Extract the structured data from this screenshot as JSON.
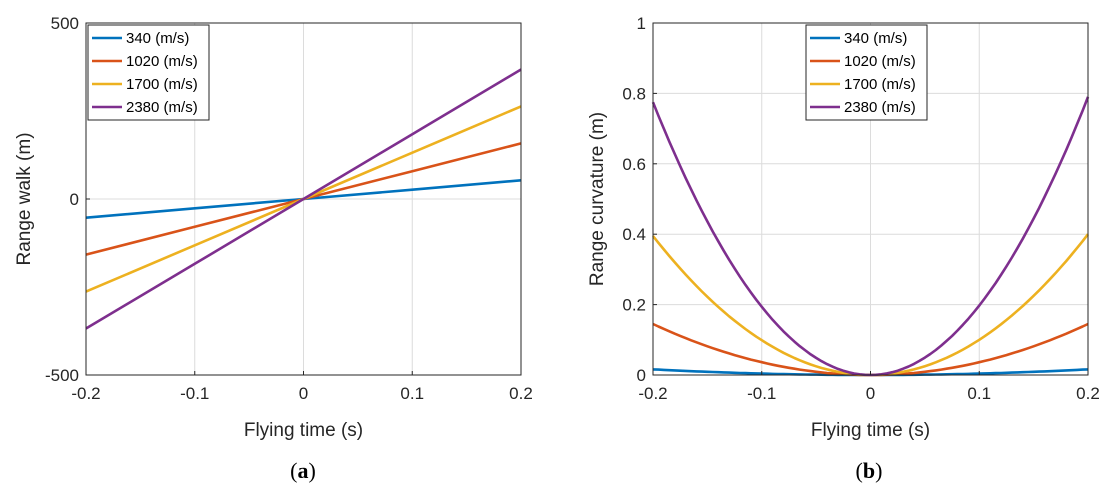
{
  "chart_data": [
    {
      "type": "line",
      "caption_letter": "a",
      "xlabel": "Flying time (s)",
      "ylabel": "Range walk (m)",
      "xlim": [
        -0.2,
        0.2
      ],
      "ylim": [
        -500,
        500
      ],
      "xticks": [
        -0.2,
        -0.1,
        0,
        0.1,
        0.2
      ],
      "xtick_labels": [
        "-0.2",
        "-0.1",
        "0",
        "0.1",
        "0.2"
      ],
      "yticks": [
        -500,
        0,
        500
      ],
      "ytick_labels": [
        "-500",
        "0",
        "500"
      ],
      "grid": true,
      "legend_position": "top-left",
      "x": [
        -0.2,
        -0.1,
        0,
        0.1,
        0.2
      ],
      "series": [
        {
          "name": "340 (m/s)",
          "color": "#0072BD",
          "values": [
            -53,
            -26.5,
            0,
            26.5,
            53
          ]
        },
        {
          "name": "1020 (m/s)",
          "color": "#D95319",
          "values": [
            -158,
            -79,
            0,
            79,
            158
          ]
        },
        {
          "name": "1700 (m/s)",
          "color": "#EDB120",
          "values": [
            -263,
            -131.5,
            0,
            131.5,
            263
          ]
        },
        {
          "name": "2380 (m/s)",
          "color": "#7E2F8E",
          "values": [
            -368,
            -184,
            0,
            184,
            368
          ]
        }
      ]
    },
    {
      "type": "line",
      "caption_letter": "b",
      "xlabel": "Flying time (s)",
      "ylabel": "Range curvature (m)",
      "xlim": [
        -0.2,
        0.2
      ],
      "ylim": [
        0,
        1
      ],
      "xticks": [
        -0.2,
        -0.1,
        0,
        0.1,
        0.2
      ],
      "xtick_labels": [
        "-0.2",
        "-0.1",
        "0",
        "0.1",
        "0.2"
      ],
      "yticks": [
        0,
        0.2,
        0.4,
        0.6,
        0.8,
        1
      ],
      "ytick_labels": [
        "0",
        "0.2",
        "0.4",
        "0.6",
        "0.8",
        "1"
      ],
      "grid": true,
      "legend_position": "top-center",
      "x": [
        -0.2,
        -0.15,
        -0.1,
        -0.05,
        0,
        0.05,
        0.1,
        0.15,
        0.2
      ],
      "series": [
        {
          "name": "340 (m/s)",
          "color": "#0072BD",
          "values": [
            0.016,
            0.009,
            0.004,
            0.001,
            0,
            0.001,
            0.004,
            0.009,
            0.016
          ]
        },
        {
          "name": "1020 (m/s)",
          "color": "#D95319",
          "values": [
            0.145,
            0.082,
            0.036,
            0.009,
            0,
            0.009,
            0.036,
            0.082,
            0.145
          ]
        },
        {
          "name": "1700 (m/s)",
          "color": "#EDB120",
          "values": [
            0.395,
            0.222,
            0.099,
            0.025,
            0,
            0.025,
            0.099,
            0.222,
            0.4
          ]
        },
        {
          "name": "2380 (m/s)",
          "color": "#7E2F8E",
          "values": [
            0.775,
            0.436,
            0.194,
            0.048,
            0,
            0.048,
            0.194,
            0.436,
            0.79
          ]
        }
      ]
    }
  ]
}
